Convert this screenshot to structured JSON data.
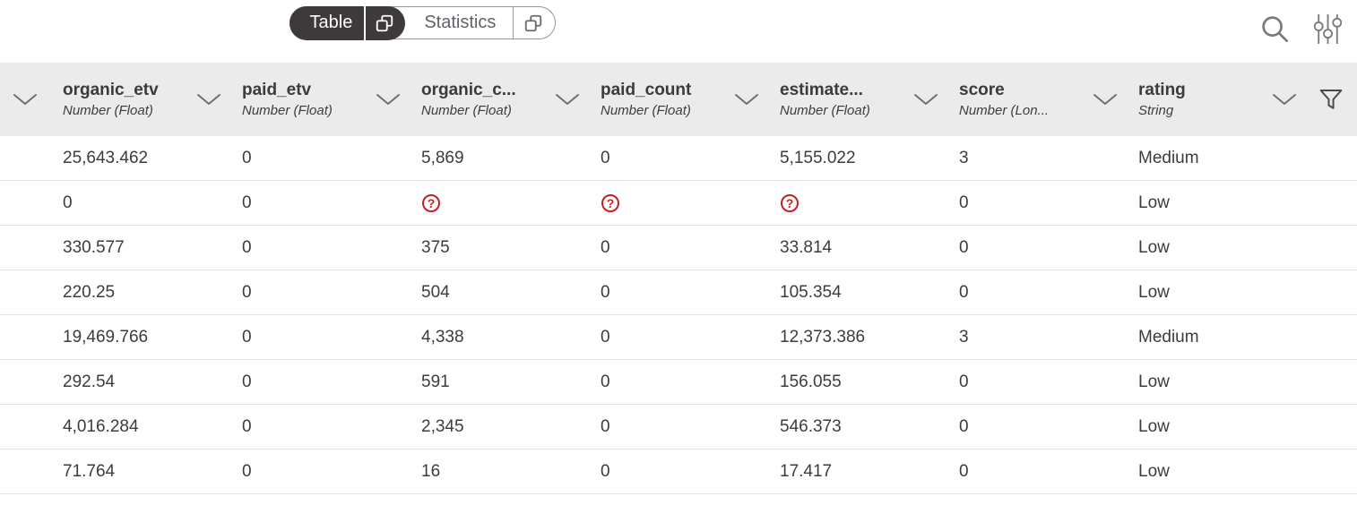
{
  "toolbar": {
    "view_toggle": {
      "table_label": "Table",
      "statistics_label": "Statistics",
      "active": "Table"
    }
  },
  "colors": {
    "active_toggle_bg": "#3e3a3a",
    "header_bg": "#ebebeb",
    "error_red": "#c5221f"
  },
  "table": {
    "columns": [
      {
        "name": "organic_etv",
        "type": "Number (Float)"
      },
      {
        "name": "paid_etv",
        "type": "Number (Float)"
      },
      {
        "name": "organic_c...",
        "type": "Number (Float)"
      },
      {
        "name": "paid_count",
        "type": "Number (Float)"
      },
      {
        "name": "estimate...",
        "type": "Number (Float)"
      },
      {
        "name": "score",
        "type": "Number (Lon..."
      },
      {
        "name": "rating",
        "type": "String"
      }
    ],
    "missing_value_marker": "?",
    "rows": [
      [
        "25,643.462",
        "0",
        "5,869",
        "0",
        "5,155.022",
        "3",
        "Medium"
      ],
      [
        "0",
        "0",
        "?",
        "?",
        "?",
        "0",
        "Low"
      ],
      [
        "330.577",
        "0",
        "375",
        "0",
        "33.814",
        "0",
        "Low"
      ],
      [
        "220.25",
        "0",
        "504",
        "0",
        "105.354",
        "0",
        "Low"
      ],
      [
        "19,469.766",
        "0",
        "4,338",
        "0",
        "12,373.386",
        "3",
        "Medium"
      ],
      [
        "292.54",
        "0",
        "591",
        "0",
        "156.055",
        "0",
        "Low"
      ],
      [
        "4,016.284",
        "0",
        "2,345",
        "0",
        "546.373",
        "0",
        "Low"
      ],
      [
        "71.764",
        "0",
        "16",
        "0",
        "17.417",
        "0",
        "Low"
      ]
    ]
  }
}
